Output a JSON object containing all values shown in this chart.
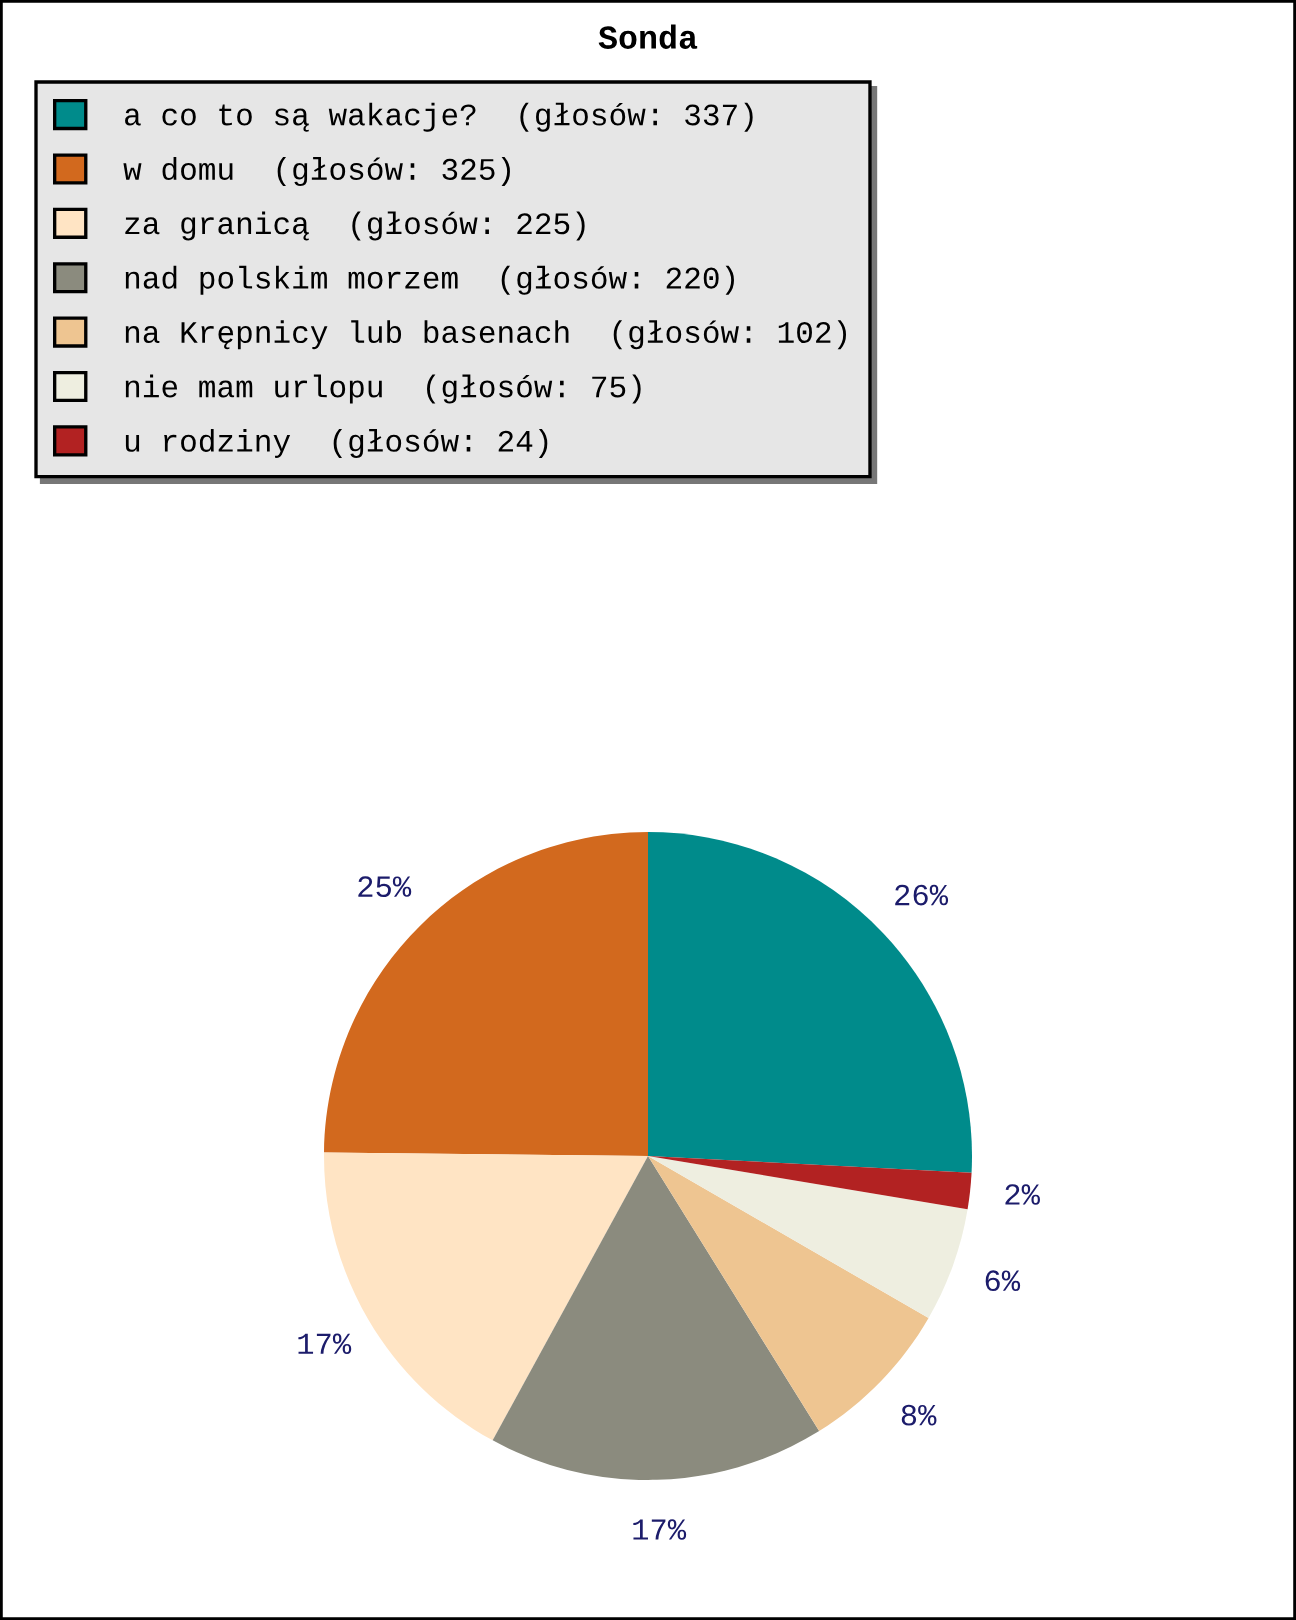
{
  "chart_data": {
    "type": "pie",
    "title": "Sonda",
    "categories": [
      "a co to są wakacje?  (głosów: 337)",
      "w domu  (głosów: 325)",
      "za granicą  (głosów: 225)",
      "nad polskim morzem  (głosów: 220)",
      "na Krępnicy lub basenach  (głosów: 102)",
      "nie mam urlopu  (głosów: 75)",
      "u rodziny  (głosów: 24)"
    ],
    "values": [
      25.8,
      24.8,
      17.2,
      16.8,
      7.8,
      5.7,
      1.8
    ],
    "colors": [
      "#008b8b",
      "#d2691e",
      "#ffe4c4",
      "#8b8b7e",
      "#eec591",
      "#eeeee0",
      "#b22222"
    ],
    "value_labels": [
      "26%",
      "25%",
      "17%",
      "17%",
      "8%",
      "6%",
      "2%"
    ],
    "legend": "top left"
  }
}
